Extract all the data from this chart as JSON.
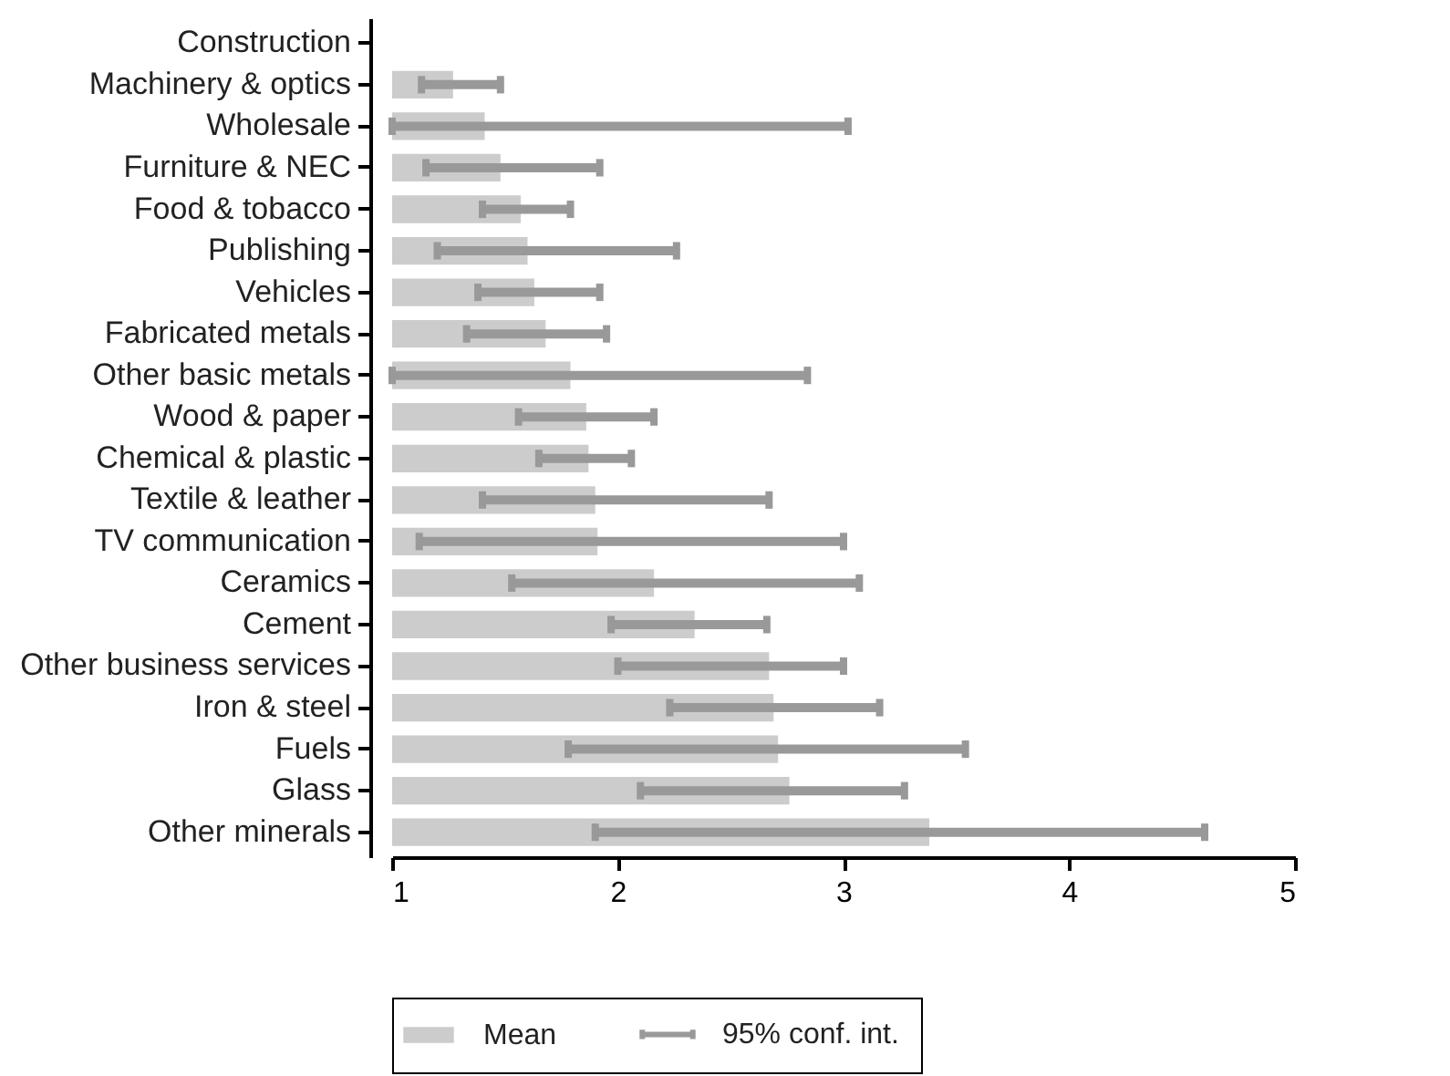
{
  "chart_data": {
    "type": "bar",
    "orientation": "horizontal",
    "categories": [
      "Construction",
      "Machinery & optics",
      "Wholesale",
      "Furniture & NEC",
      "Food & tobacco",
      "Publishing",
      "Vehicles",
      "Fabricated metals",
      "Other basic metals",
      "Wood & paper",
      "Chemical & plastic",
      "Textile & leather",
      "TV communication",
      "Ceramics",
      "Cement",
      "Other business services",
      "Iron & steel",
      "Fuels",
      "Glass",
      "Other minerals"
    ],
    "series": [
      {
        "name": "Mean",
        "color": "#cccccc",
        "values": [
          null,
          1.27,
          1.41,
          1.48,
          1.57,
          1.6,
          1.63,
          1.68,
          1.79,
          1.86,
          1.87,
          1.9,
          1.91,
          2.16,
          2.34,
          2.67,
          2.69,
          2.71,
          2.76,
          3.38
        ],
        "errors": [
          null,
          [
            1.13,
            1.48
          ],
          [
            1.0,
            3.02
          ],
          [
            1.15,
            1.92
          ],
          [
            1.4,
            1.79
          ],
          [
            1.2,
            2.26
          ],
          [
            1.38,
            1.92
          ],
          [
            1.33,
            1.95
          ],
          [
            1.0,
            2.84
          ],
          [
            1.56,
            2.16
          ],
          [
            1.65,
            2.06
          ],
          [
            1.4,
            2.67
          ],
          [
            1.12,
            3.0
          ],
          [
            1.53,
            3.07
          ],
          [
            1.97,
            2.66
          ],
          [
            2.0,
            3.0
          ],
          [
            2.23,
            3.16
          ],
          [
            1.78,
            3.54
          ],
          [
            2.1,
            3.27
          ],
          [
            1.9,
            4.6
          ]
        ]
      }
    ],
    "annotations": [
      "95% conf. int."
    ],
    "xlim": [
      1,
      5
    ],
    "xticks": [
      1,
      2,
      3,
      4,
      5
    ],
    "legend": "bottom"
  }
}
